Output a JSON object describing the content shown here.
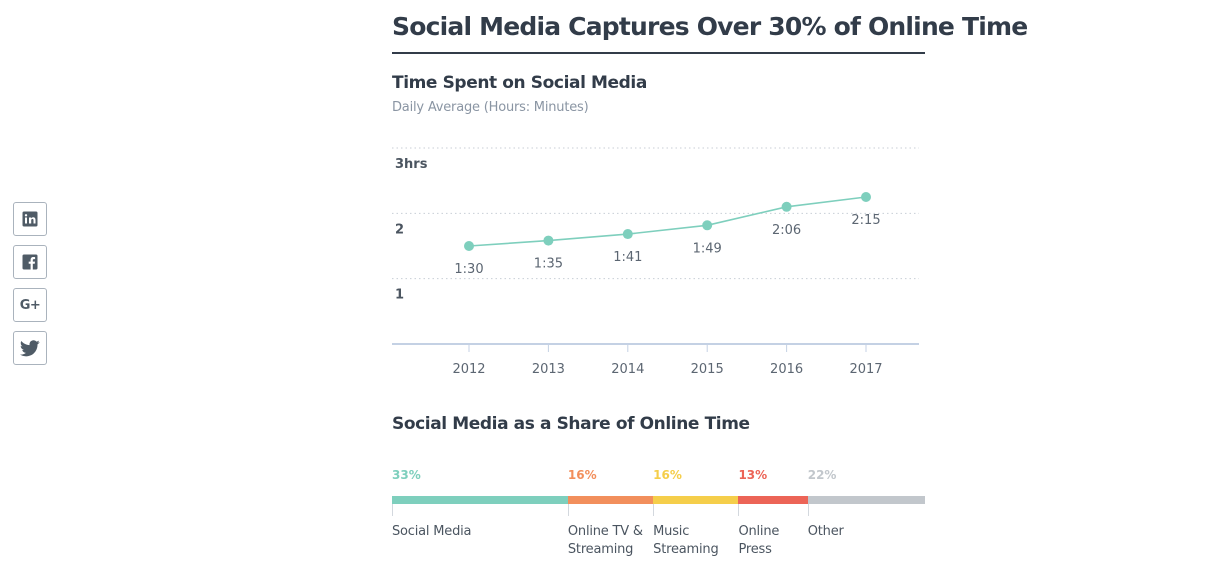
{
  "share": {
    "items": [
      {
        "name": "linkedin-icon"
      },
      {
        "name": "facebook-icon"
      },
      {
        "name": "google-plus-icon",
        "text": "G+"
      },
      {
        "name": "twitter-icon"
      }
    ]
  },
  "page": {
    "title": "Social Media Captures Over 30% of Online Time"
  },
  "colors": {
    "line": "#7ecfbd",
    "gridline": "#c8ced6",
    "axis": "#c4d1e4",
    "social_media": "#7ecfbd",
    "online_tv": "#f28f5c",
    "music": "#f5ce4a",
    "online_press": "#ec6457",
    "other": "#c2c7cc"
  },
  "chart_data": [
    {
      "type": "line",
      "title": "Time Spent on Social Media",
      "subtitle": "Daily Average (Hours: Minutes)",
      "x": [
        "2012",
        "2013",
        "2014",
        "2015",
        "2016",
        "2017"
      ],
      "series": [
        {
          "values": [
            1.5,
            1.583,
            1.683,
            1.817,
            2.1,
            2.25
          ],
          "labels": [
            "1:30",
            "1:35",
            "1:41",
            "1:49",
            "2:06",
            "2:15"
          ]
        }
      ],
      "yticks": [
        {
          "value": 1,
          "label": "1"
        },
        {
          "value": 2,
          "label": "2"
        },
        {
          "value": 3,
          "label": "3hrs"
        }
      ],
      "ylim": [
        0,
        3
      ],
      "grid": true
    },
    {
      "type": "bar",
      "orientation": "stacked-horizontal",
      "title": "Social Media as a Share of Online Time",
      "categories": [
        "Social Media",
        "Online TV &\nStreaming",
        "Music\nStreaming",
        "Online\nPress",
        "Other"
      ],
      "values": [
        33,
        16,
        16,
        13,
        22
      ],
      "value_labels": [
        "33%",
        "16%",
        "16%",
        "13%",
        "22%"
      ],
      "color_keys": [
        "social_media",
        "online_tv",
        "music",
        "online_press",
        "other"
      ]
    }
  ]
}
